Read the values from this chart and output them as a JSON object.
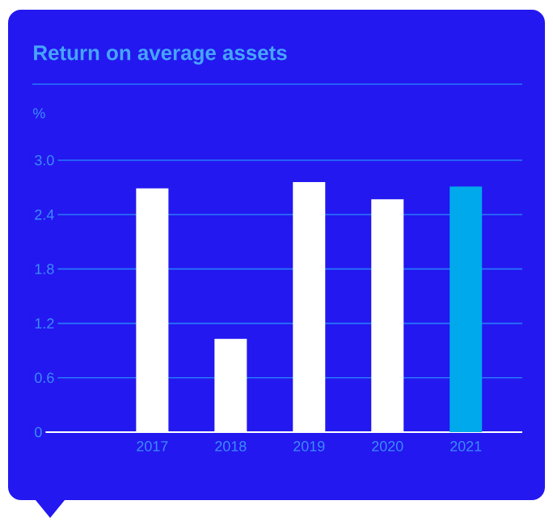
{
  "chart_data": {
    "type": "bar",
    "title": "Return on average assets",
    "ylabel": "%",
    "categories": [
      "2017",
      "2018",
      "2019",
      "2020",
      "2021"
    ],
    "values": [
      2.69,
      1.03,
      2.76,
      2.57,
      2.71
    ],
    "colors": [
      "#ffffff",
      "#ffffff",
      "#ffffff",
      "#ffffff",
      "#00a9ec"
    ],
    "ylim": [
      0,
      3.0
    ],
    "yticks": [
      0,
      0.6,
      1.2,
      1.8,
      2.4,
      {
        "value": 3.0,
        "label": "3.0"
      }
    ],
    "grid": "y"
  }
}
